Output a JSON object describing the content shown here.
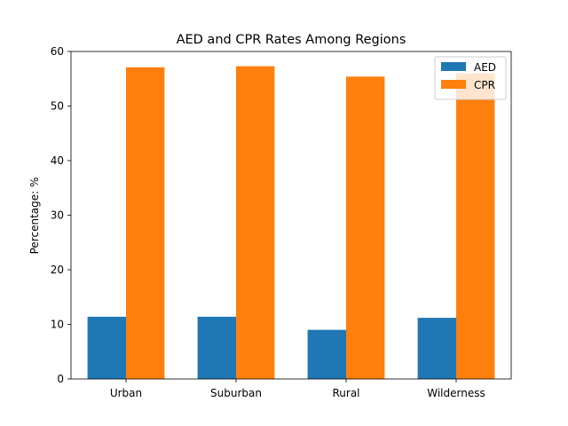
{
  "chart_data": {
    "type": "bar",
    "title": "AED and CPR Rates Among Regions",
    "xlabel": "",
    "ylabel": "Percentage: %",
    "categories": [
      "Urban",
      "Suburban",
      "Rural",
      "Wilderness"
    ],
    "series": [
      {
        "name": "AED",
        "values": [
          11.4,
          11.4,
          9.0,
          11.2
        ],
        "color": "#1f77b4"
      },
      {
        "name": "CPR",
        "values": [
          57.1,
          57.3,
          55.4,
          56.0
        ],
        "color": "#ff7f0e"
      }
    ],
    "ylim": [
      0,
      60
    ],
    "yticks": [
      0,
      10,
      20,
      30,
      40,
      50,
      60
    ],
    "grid": false,
    "legend_position": "top-right"
  }
}
